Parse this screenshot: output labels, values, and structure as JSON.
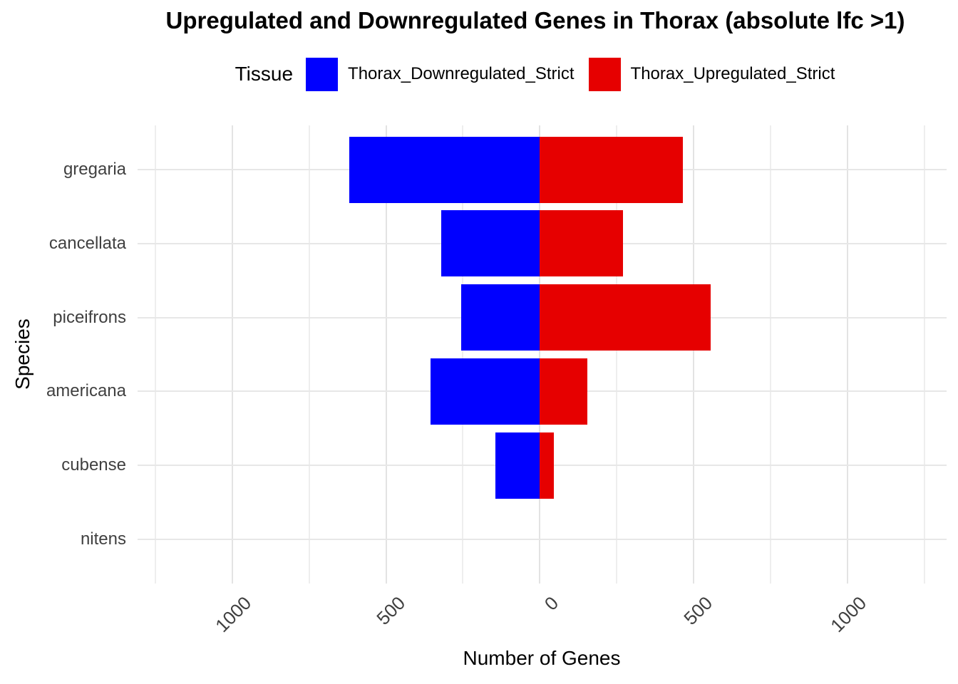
{
  "title": "Upregulated and Downregulated Genes in Thorax (absolute lfc >1)",
  "legend": {
    "title": "Tissue",
    "items": [
      {
        "label": "Thorax_Downregulated_Strict",
        "color": "#0000ff"
      },
      {
        "label": "Thorax_Upregulated_Strict",
        "color": "#e60000"
      }
    ]
  },
  "chart_data": {
    "type": "bar",
    "orientation": "horizontal-diverging",
    "title": "Upregulated and Downregulated Genes in Thorax (absolute lfc >1)",
    "xlabel": "Number of Genes",
    "ylabel": "Species",
    "categories": [
      "gregaria",
      "cancellata",
      "piceifrons",
      "americana",
      "cubense",
      "nitens"
    ],
    "series": [
      {
        "name": "Thorax_Downregulated_Strict",
        "color": "#0000ff",
        "direction": "negative",
        "values": [
          620,
          320,
          255,
          355,
          145,
          0
        ]
      },
      {
        "name": "Thorax_Upregulated_Strict",
        "color": "#e60000",
        "direction": "positive",
        "values": [
          465,
          270,
          555,
          155,
          45,
          0
        ]
      }
    ],
    "x_axis": {
      "ticks": [
        -1000,
        -500,
        0,
        500,
        1000
      ],
      "tick_labels": [
        "1000",
        "500",
        "0",
        "500",
        "1000"
      ],
      "minor_step": 250,
      "range": [
        -1308,
        1323
      ]
    },
    "grid": true,
    "legend_position": "top",
    "bar_rel_height": 0.9
  },
  "colors": {
    "grid_major": "#e3e3e3",
    "grid_minor": "#eeeeee",
    "grid_row": "#e7e7e7",
    "axis_text": "#404040",
    "title_text": "#000000",
    "background": "#ffffff"
  }
}
